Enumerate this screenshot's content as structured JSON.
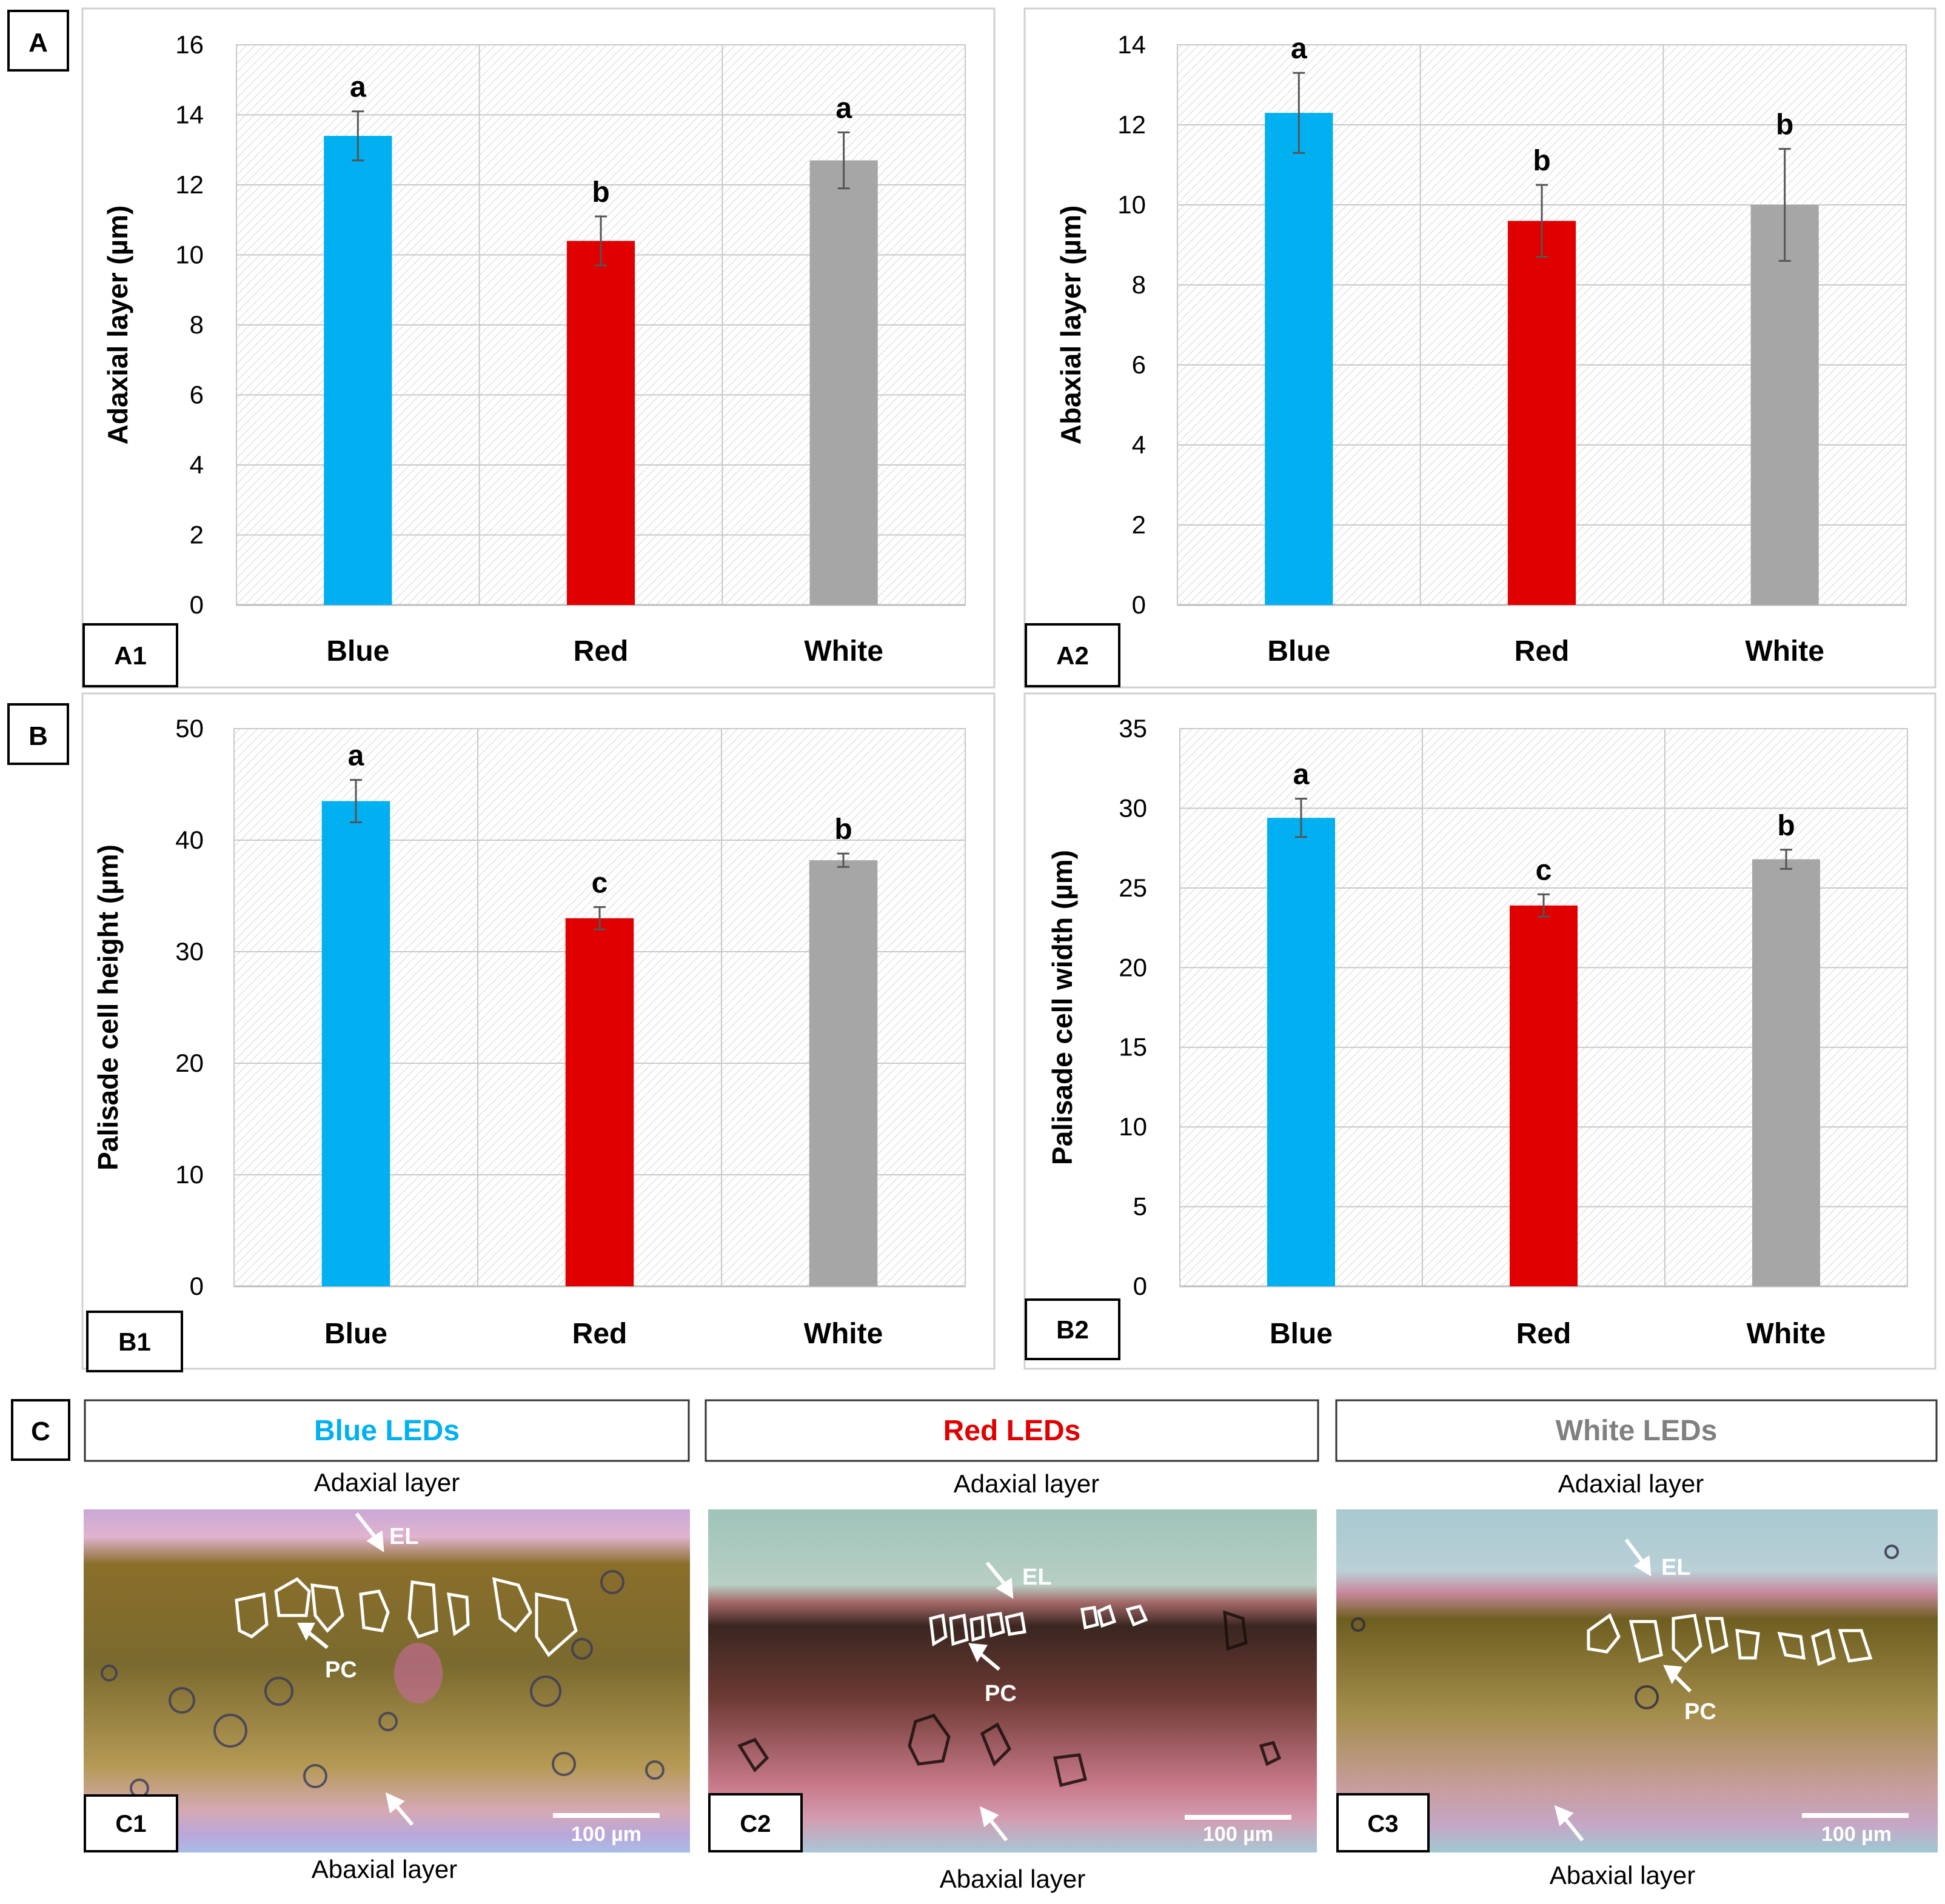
{
  "panel_labels": {
    "A": "A",
    "B": "B",
    "C": "C"
  },
  "colors": {
    "blue": "#00B0F0",
    "red": "#E00000",
    "white": "#A6A6A6",
    "blue_text": "#00B0F0",
    "red_text": "#E00000",
    "white_text": "#808080"
  },
  "chart_data": [
    {
      "id": "A1",
      "type": "bar",
      "panel_label": "A1",
      "categories": [
        "Blue",
        "Red",
        "White"
      ],
      "values": [
        13.4,
        10.4,
        12.7
      ],
      "errors": [
        0.7,
        0.7,
        0.8
      ],
      "letters": [
        "a",
        "b",
        "a"
      ],
      "ylabel": "Adaxial layer (µm)",
      "ylim": [
        0,
        16
      ],
      "ytick_step": 2,
      "yticks": [
        "0",
        "2",
        "4",
        "6",
        "8",
        "10",
        "12",
        "14",
        "16"
      ]
    },
    {
      "id": "A2",
      "type": "bar",
      "panel_label": "A2",
      "categories": [
        "Blue",
        "Red",
        "White"
      ],
      "values": [
        12.3,
        9.6,
        10.0
      ],
      "errors": [
        1.0,
        0.9,
        1.4
      ],
      "letters": [
        "a",
        "b",
        "b"
      ],
      "ylabel": "Abaxial layer (µm)",
      "ylim": [
        0,
        14
      ],
      "ytick_step": 2,
      "yticks": [
        "0",
        "2",
        "4",
        "6",
        "8",
        "10",
        "12",
        "14"
      ]
    },
    {
      "id": "B1",
      "type": "bar",
      "panel_label": "B1",
      "categories": [
        "Blue",
        "Red",
        "White"
      ],
      "values": [
        43.5,
        33.0,
        38.2
      ],
      "errors": [
        1.9,
        1.0,
        0.6
      ],
      "letters": [
        "a",
        "c",
        "b"
      ],
      "ylabel": "Palisade cell height (µm)",
      "ylim": [
        0,
        50
      ],
      "ytick_step": 10,
      "yticks": [
        "0",
        "10",
        "20",
        "30",
        "40",
        "50"
      ]
    },
    {
      "id": "B2",
      "type": "bar",
      "panel_label": "B2",
      "categories": [
        "Blue",
        "Red",
        "White"
      ],
      "values": [
        29.4,
        23.9,
        26.8
      ],
      "errors": [
        1.2,
        0.7,
        0.6
      ],
      "letters": [
        "a",
        "c",
        "b"
      ],
      "ylabel": "Palisade cell width (µm)",
      "ylim": [
        0,
        35
      ],
      "ytick_step": 5,
      "yticks": [
        "0",
        "5",
        "10",
        "15",
        "20",
        "25",
        "30",
        "35"
      ]
    }
  ],
  "micrographs": [
    {
      "panel_label": "C1",
      "header": "Blue LEDs",
      "top_label": "Adaxial layer",
      "bottom_label": "Abaxial layer",
      "el": "EL",
      "pc": "PC",
      "scale": "100 µm"
    },
    {
      "panel_label": "C2",
      "header": "Red LEDs",
      "top_label": "Adaxial layer",
      "bottom_label": "Abaxial layer",
      "el": "EL",
      "pc": "PC",
      "scale": "100 µm"
    },
    {
      "panel_label": "C3",
      "header": "White LEDs",
      "top_label": "Adaxial layer",
      "bottom_label": "Abaxial layer",
      "el": "EL",
      "pc": "PC",
      "scale": "100 µm"
    }
  ]
}
